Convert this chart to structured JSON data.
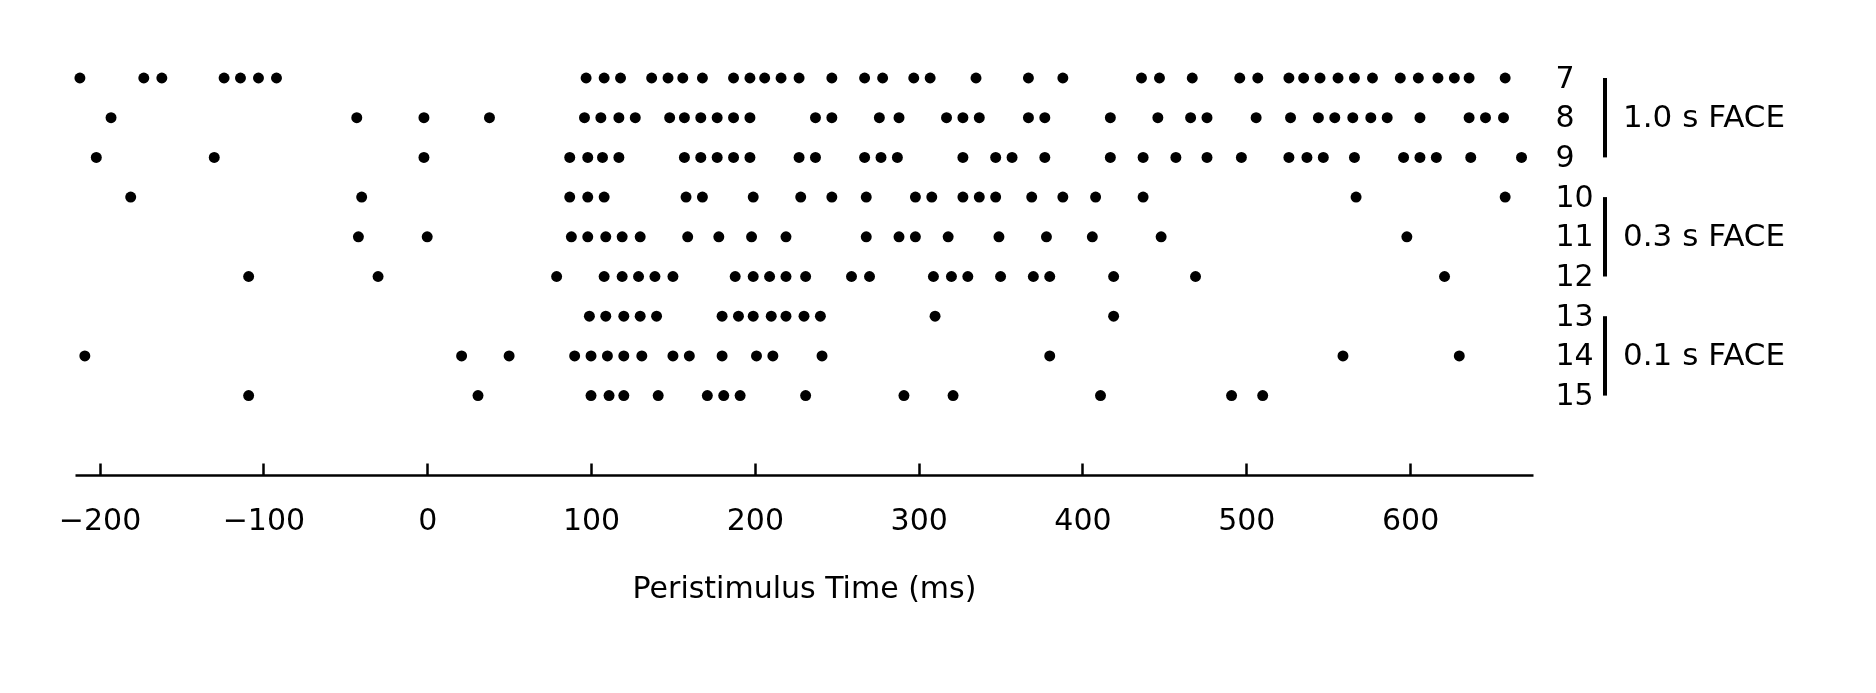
{
  "chart_data": {
    "type": "scatter",
    "xlabel": "Peristimulus Time (ms)",
    "xlim": [
      -215,
      675
    ],
    "xticks": [
      -200,
      -100,
      0,
      100,
      200,
      300,
      400,
      500,
      600
    ],
    "ylim": [
      17,
      7
    ],
    "yticks": [
      7,
      8,
      9,
      10,
      11,
      12,
      13,
      14,
      15
    ],
    "grid": false,
    "legend": false,
    "marker": "circle",
    "annotations": [
      "1.0 s FACE",
      "0.3 s FACE",
      "0.1 s FACE"
    ],
    "series": [
      {
        "color": "#000000",
        "x": [
          -212,
          -173,
          -162,
          -124,
          -114,
          -103,
          -92,
          97,
          108,
          118,
          137,
          147,
          156,
          168,
          187,
          197,
          206,
          216,
          227,
          247,
          267,
          278,
          297,
          307,
          335,
          367,
          388,
          436,
          447,
          467,
          496,
          507,
          526,
          535,
          545,
          556,
          566,
          577,
          594,
          605,
          617,
          627,
          636,
          658
        ],
        "values": [
          7,
          7,
          7,
          7,
          7,
          7,
          7,
          7,
          7,
          7,
          7,
          7,
          7,
          7,
          7,
          7,
          7,
          7,
          7,
          7,
          7,
          7,
          7,
          7,
          7,
          7,
          7,
          7,
          7,
          7,
          7,
          7,
          7,
          7,
          7,
          7,
          7,
          7,
          7,
          7,
          7,
          7,
          7,
          7
        ]
      },
      {
        "color": "#000000",
        "x": [
          -193,
          -43,
          -2,
          38,
          96,
          106,
          117,
          127,
          148,
          157,
          167,
          177,
          187,
          197,
          237,
          247,
          276,
          288,
          317,
          327,
          337,
          367,
          377,
          417,
          446,
          466,
          476,
          506,
          527,
          544,
          554,
          565,
          576,
          586,
          606,
          636,
          646,
          657
        ],
        "values": [
          8,
          8,
          8,
          8,
          8,
          8,
          8,
          8,
          8,
          8,
          8,
          8,
          8,
          8,
          8,
          8,
          8,
          8,
          8,
          8,
          8,
          8,
          8,
          8,
          8,
          8,
          8,
          8,
          8,
          8,
          8,
          8,
          8,
          8,
          8,
          8,
          8,
          8
        ]
      },
      {
        "color": "#000000",
        "x": [
          -202,
          -130,
          -2,
          87,
          98,
          107,
          117,
          157,
          167,
          177,
          187,
          197,
          227,
          237,
          267,
          277,
          287,
          327,
          347,
          357,
          377,
          417,
          437,
          457,
          476,
          497,
          526,
          537,
          547,
          566,
          596,
          606,
          616,
          637,
          668
        ],
        "values": [
          9,
          9,
          9,
          9,
          9,
          9,
          9,
          9,
          9,
          9,
          9,
          9,
          9,
          9,
          9,
          9,
          9,
          9,
          9,
          9,
          9,
          9,
          9,
          9,
          9,
          9,
          9,
          9,
          9,
          9,
          9,
          9,
          9,
          9,
          9
        ]
      },
      {
        "color": "#000000",
        "x": [
          -181,
          -40,
          87,
          98,
          108,
          158,
          168,
          199,
          228,
          247,
          268,
          298,
          308,
          327,
          337,
          347,
          369,
          388,
          408,
          437,
          567,
          658
        ],
        "values": [
          10,
          10,
          10,
          10,
          10,
          10,
          10,
          10,
          10,
          10,
          10,
          10,
          10,
          10,
          10,
          10,
          10,
          10,
          10,
          10,
          10,
          10
        ]
      },
      {
        "color": "#000000",
        "x": [
          -42,
          0,
          88,
          98,
          109,
          119,
          130,
          159,
          178,
          198,
          219,
          268,
          288,
          298,
          318,
          349,
          378,
          406,
          448,
          598
        ],
        "values": [
          11,
          11,
          11,
          11,
          11,
          11,
          11,
          11,
          11,
          11,
          11,
          11,
          11,
          11,
          11,
          11,
          11,
          11,
          11,
          11
        ]
      },
      {
        "color": "#000000",
        "x": [
          -109,
          -30,
          79,
          108,
          119,
          129,
          139,
          150,
          188,
          199,
          209,
          219,
          231,
          259,
          270,
          309,
          320,
          330,
          350,
          370,
          380,
          419,
          469,
          621
        ],
        "values": [
          12,
          12,
          12,
          12,
          12,
          12,
          12,
          12,
          12,
          12,
          12,
          12,
          12,
          12,
          12,
          12,
          12,
          12,
          12,
          12,
          12,
          12,
          12,
          12
        ]
      },
      {
        "color": "#000000",
        "x": [
          99,
          109,
          120,
          130,
          140,
          180,
          190,
          199,
          210,
          219,
          230,
          240,
          310,
          419
        ],
        "values": [
          13,
          13,
          13,
          13,
          13,
          13,
          13,
          13,
          13,
          13,
          13,
          13,
          13,
          13
        ]
      },
      {
        "color": "#000000",
        "x": [
          -209,
          21,
          50,
          90,
          100,
          110,
          120,
          131,
          150,
          160,
          180,
          201,
          211,
          241,
          380,
          559,
          630
        ],
        "values": [
          14,
          14,
          14,
          14,
          14,
          14,
          14,
          14,
          14,
          14,
          14,
          14,
          14,
          14,
          14,
          14,
          14
        ]
      },
      {
        "color": "#000000",
        "x": [
          -109,
          31,
          100,
          111,
          120,
          141,
          171,
          181,
          191,
          231,
          291,
          321,
          411,
          491,
          510
        ],
        "values": [
          15,
          15,
          15,
          15,
          15,
          15,
          15,
          15,
          15,
          15,
          15,
          15,
          15,
          15,
          15
        ]
      }
    ]
  }
}
